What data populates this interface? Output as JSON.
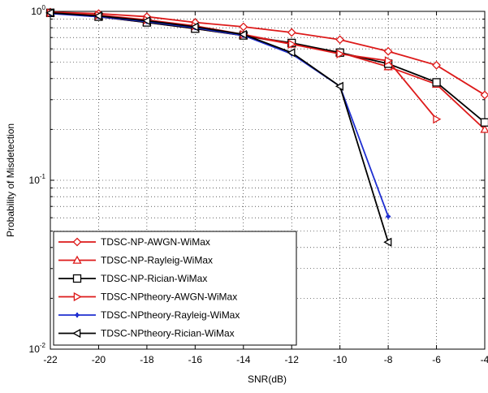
{
  "chart_data": {
    "type": "line",
    "title": "",
    "xlabel": "SNR(dB)",
    "ylabel": "Probability of Misdetection",
    "x_scale": "linear",
    "y_scale": "log",
    "xlim": [
      -22,
      -4
    ],
    "ylim": [
      0.01,
      1
    ],
    "grid": true,
    "legend_position": "bottom-left",
    "x_ticks": [
      {
        "value": -22,
        "label": "-22"
      },
      {
        "value": -20,
        "label": "-20"
      },
      {
        "value": -18,
        "label": "-18"
      },
      {
        "value": -16,
        "label": "-16"
      },
      {
        "value": -14,
        "label": "-14"
      },
      {
        "value": -12,
        "label": "-12"
      },
      {
        "value": -10,
        "label": "-10"
      },
      {
        "value": -8,
        "label": "-8"
      },
      {
        "value": -6,
        "label": "-6"
      },
      {
        "value": -4,
        "label": "-4"
      }
    ],
    "y_ticks": [
      {
        "value": 1,
        "base": "10",
        "exp": "0"
      },
      {
        "value": 0.1,
        "base": "10",
        "exp": "-1"
      },
      {
        "value": 0.01,
        "base": "10",
        "exp": "-2"
      }
    ],
    "series": [
      {
        "name": "TDSC-NP-AWGN-WiMax",
        "color": "#dd1a1a",
        "marker": "diamond",
        "x": [
          -22,
          -20,
          -18,
          -16,
          -14,
          -12,
          -10,
          -8,
          -6,
          -4
        ],
        "y": [
          0.99,
          0.97,
          0.93,
          0.86,
          0.81,
          0.75,
          0.68,
          0.58,
          0.48,
          0.32
        ]
      },
      {
        "name": "TDSC-NP-Rayleig-WiMax",
        "color": "#dd1a1a",
        "marker": "triangle-up",
        "x": [
          -22,
          -20,
          -18,
          -16,
          -14,
          -12,
          -10,
          -8,
          -6,
          -4
        ],
        "y": [
          0.98,
          0.93,
          0.86,
          0.79,
          0.72,
          0.64,
          0.57,
          0.47,
          0.37,
          0.2
        ]
      },
      {
        "name": "TDSC-NP-Rician-WiMax",
        "color": "#000000",
        "marker": "square",
        "x": [
          -22,
          -20,
          -18,
          -16,
          -14,
          -12,
          -10,
          -8,
          -6,
          -4
        ],
        "y": [
          0.98,
          0.93,
          0.86,
          0.79,
          0.72,
          0.65,
          0.57,
          0.49,
          0.38,
          0.22
        ]
      },
      {
        "name": "TDSC-NPtheory-AWGN-WiMax",
        "color": "#dd1a1a",
        "marker": "triangle-right",
        "x": [
          -22,
          -20,
          -18,
          -16,
          -14,
          -12,
          -10,
          -8,
          -6
        ],
        "y": [
          0.98,
          0.95,
          0.89,
          0.82,
          0.73,
          0.64,
          0.56,
          0.51,
          0.23
        ]
      },
      {
        "name": "TDSC-NPtheory-Rayleig-WiMax",
        "color": "#1f2fd1",
        "marker": "star",
        "x": [
          -22,
          -20,
          -18,
          -16,
          -14,
          -12,
          -10,
          -8
        ],
        "y": [
          0.97,
          0.93,
          0.87,
          0.8,
          0.72,
          0.56,
          0.36,
          0.061
        ]
      },
      {
        "name": "TDSC-NPtheory-Rician-WiMax",
        "color": "#000000",
        "marker": "triangle-left",
        "x": [
          -22,
          -20,
          -18,
          -16,
          -14,
          -12,
          -10,
          -8
        ],
        "y": [
          0.98,
          0.94,
          0.88,
          0.81,
          0.73,
          0.57,
          0.36,
          0.043
        ]
      }
    ]
  }
}
